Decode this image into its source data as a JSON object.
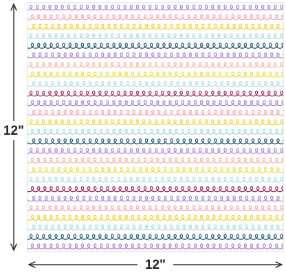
{
  "dimensions": {
    "height_label": "12\"",
    "width_label": "12\""
  }
}
